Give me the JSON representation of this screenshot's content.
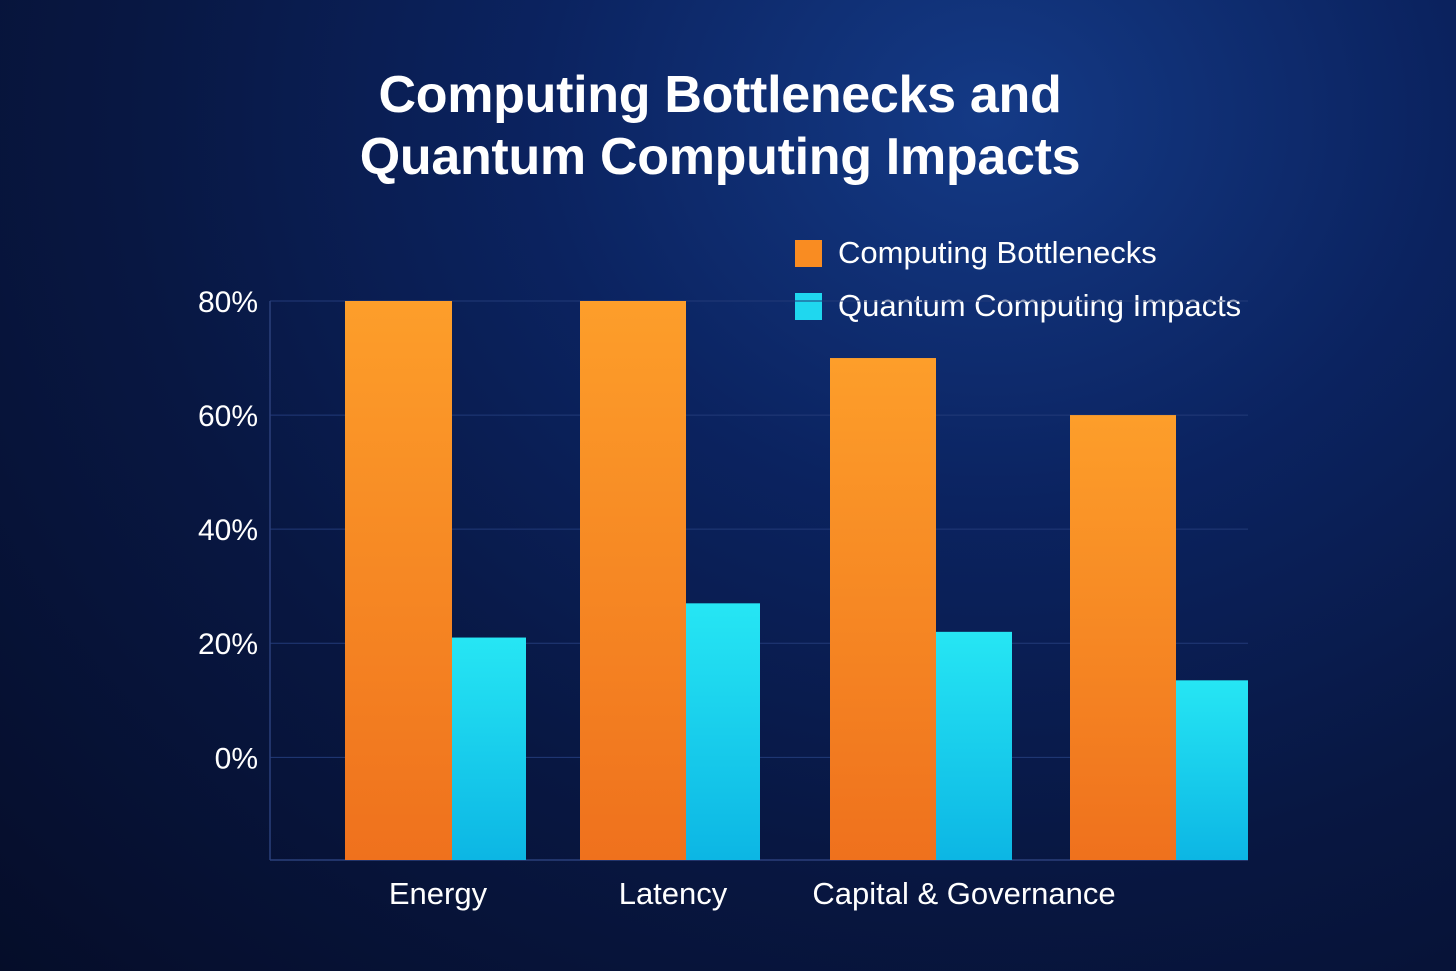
{
  "chart_data": {
    "type": "bar",
    "title": [
      "Computing Bottlenecks and",
      "Quantum Computing Impacts"
    ],
    "xlabel": "",
    "ylabel": "",
    "categories": [
      "Energy",
      "Latency",
      "Capital & Governance",
      ""
    ],
    "series": [
      {
        "name": "Computing Bottlenecks",
        "color": "#f98c22",
        "values": [
          80,
          80,
          70,
          60
        ]
      },
      {
        "name": "Quantum Computing Impacts",
        "color": "#1fd7ef",
        "values": [
          21,
          27,
          22,
          13.5
        ]
      }
    ],
    "yticks": [
      0,
      20,
      40,
      60,
      80
    ],
    "ytick_labels": [
      "0%",
      "20%",
      "40%",
      "60%",
      "80%"
    ],
    "ylim": [
      -18,
      80
    ],
    "grid": true,
    "legend_position": "top-right"
  }
}
